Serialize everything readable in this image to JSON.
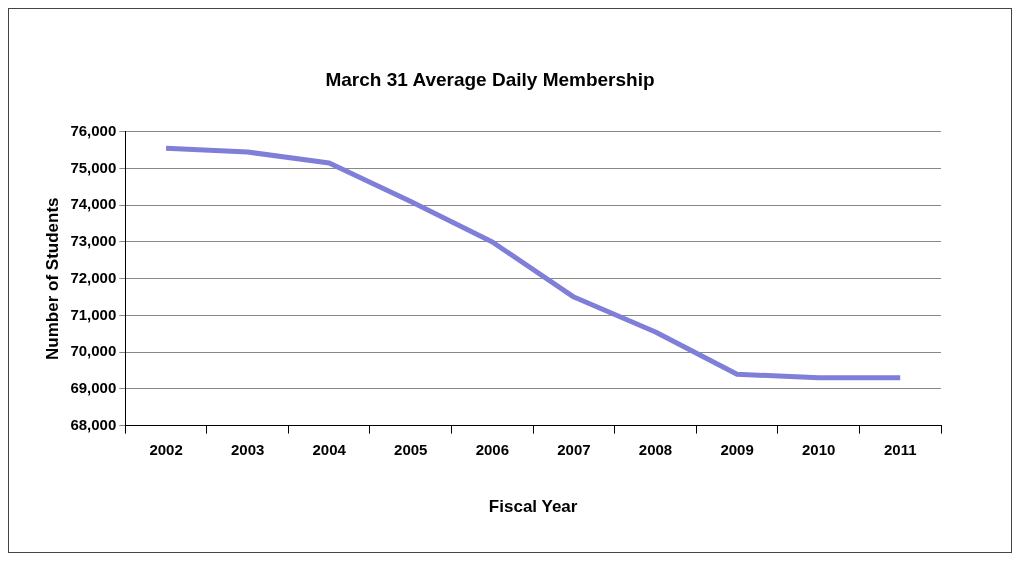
{
  "chart_data": {
    "type": "line",
    "title": "March 31 Average Daily Membership",
    "xlabel": "Fiscal Year",
    "ylabel": "Number of Students",
    "categories": [
      "2002",
      "2003",
      "2004",
      "2005",
      "2006",
      "2007",
      "2008",
      "2009",
      "2010",
      "2011"
    ],
    "series": [
      {
        "color": "#7f7fd9",
        "values": [
          75550,
          75450,
          75150,
          74100,
          73000,
          71500,
          70550,
          69400,
          69300,
          69300
        ]
      }
    ],
    "ylim": [
      68000,
      76000
    ],
    "yticks": [
      {
        "value": 68000,
        "label": "68,000"
      },
      {
        "value": 69000,
        "label": "69,000"
      },
      {
        "value": 70000,
        "label": "70,000"
      },
      {
        "value": 71000,
        "label": "71,000"
      },
      {
        "value": 72000,
        "label": "72,000"
      },
      {
        "value": 73000,
        "label": "73,000"
      },
      {
        "value": 74000,
        "label": "74,000"
      },
      {
        "value": 75000,
        "label": "75,000"
      },
      {
        "value": 76000,
        "label": "76,000"
      }
    ],
    "grid": "y",
    "legend": false,
    "marker": "none",
    "line_style": "solid"
  }
}
